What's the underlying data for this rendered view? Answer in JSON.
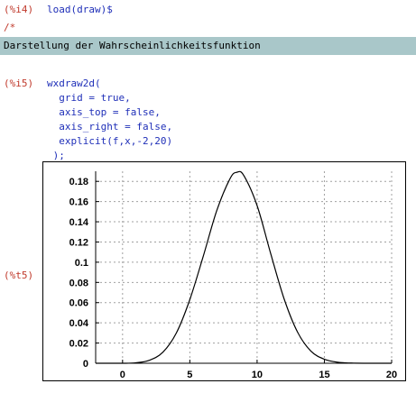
{
  "cells": {
    "i4": {
      "label": "(%i4)",
      "code": "load(draw)$"
    },
    "comment_open": "/*",
    "comment_text": "Darstellung der Wahrscheinlichkeitsfunktion",
    "i5": {
      "label": "(%i5)",
      "lines": [
        "wxdraw2d(",
        "  grid = true,",
        "  axis_top = false,",
        "  axis_right = false,",
        "  explicit(f,x,-2,20)",
        " );"
      ]
    },
    "t5": {
      "label": "(%t5)"
    }
  },
  "colors": {
    "label": "#c0392b",
    "code": "#1f2fb8",
    "comment_bg": "#a9c7c9"
  },
  "chart_data": {
    "type": "line",
    "grid": true,
    "xlim": [
      -2,
      20
    ],
    "ylim": [
      0,
      0.19
    ],
    "xticks": [
      0,
      5,
      10,
      15,
      20
    ],
    "yticks": [
      0,
      0.02,
      0.04,
      0.06,
      0.08,
      0.1,
      0.12,
      0.14,
      0.16,
      0.18
    ],
    "ytick_labels": [
      "0",
      "0.02",
      "0.04",
      "0.06",
      "0.08",
      "0.1",
      "0.12",
      "0.14",
      "0.16",
      "0.18"
    ],
    "series": [
      {
        "x": [
          -2,
          0,
          1,
          2,
          3,
          4,
          5,
          6,
          7,
          8,
          8.5,
          9,
          10,
          11,
          12,
          13,
          14,
          15,
          16,
          17,
          18,
          20
        ],
        "y": [
          0,
          0,
          0.0005,
          0.003,
          0.011,
          0.03,
          0.063,
          0.106,
          0.151,
          0.183,
          0.189,
          0.186,
          0.156,
          0.109,
          0.064,
          0.031,
          0.012,
          0.004,
          0.001,
          0.0002,
          0,
          0
        ]
      }
    ]
  }
}
